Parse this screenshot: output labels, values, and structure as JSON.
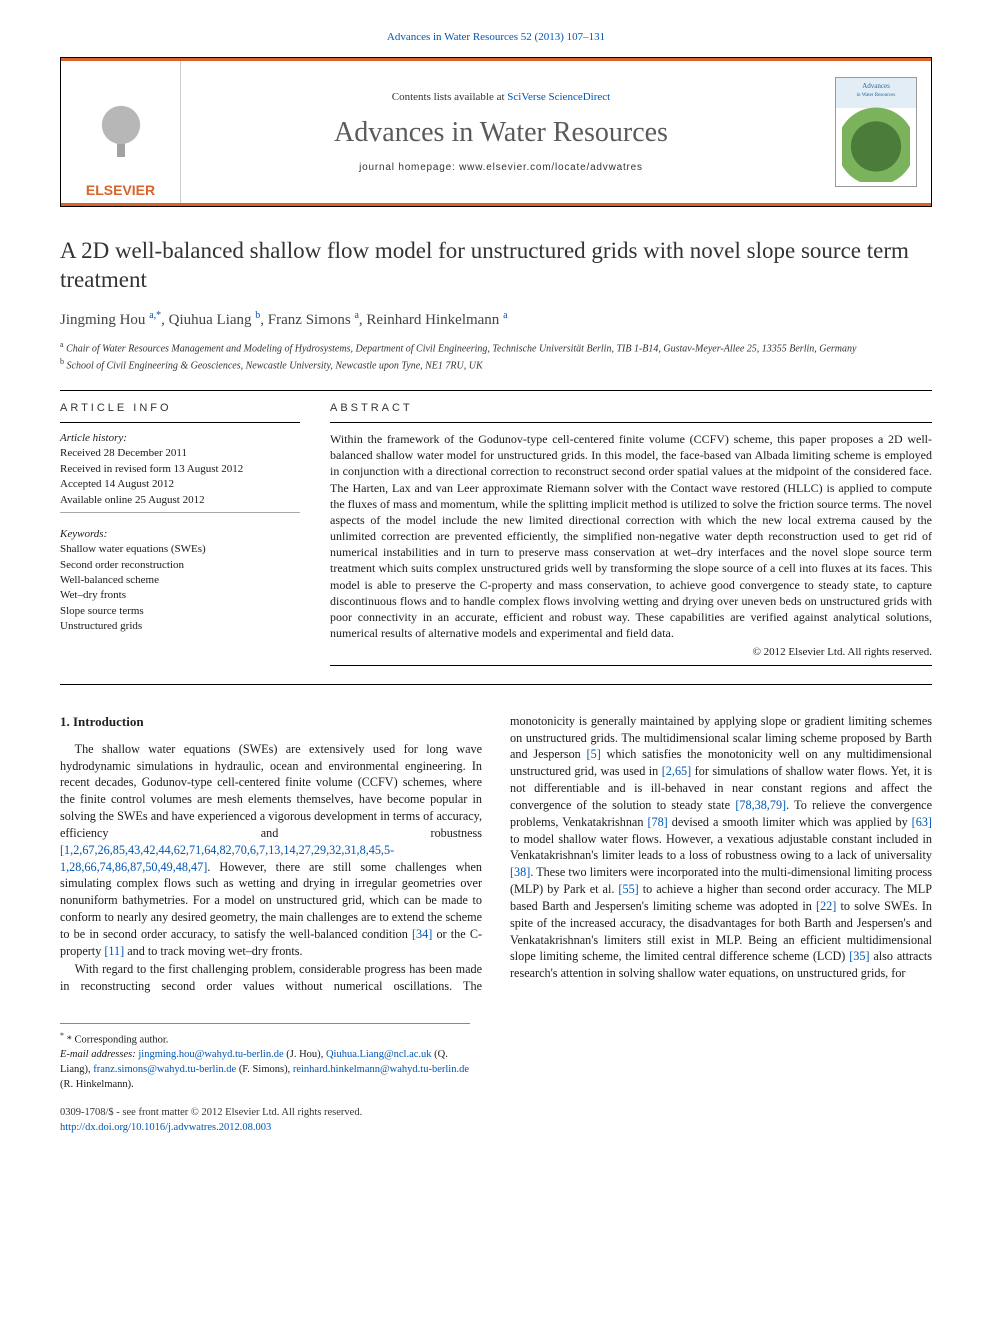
{
  "top_link": {
    "prefix": "",
    "journal_full": "Advances in Water Resources 52 (2013) 107–131"
  },
  "masthead": {
    "contents_line_pre": "Contents lists available at ",
    "contents_line_link": "SciVerse ScienceDirect",
    "journal_title": "Advances in Water Resources",
    "homepage_pre": "journal homepage: ",
    "homepage_url": "www.elsevier.com/locate/advwatres",
    "publisher": "ELSEVIER",
    "cover_t1": "Advances",
    "cover_t2": "in Water Resources"
  },
  "paper": {
    "title": "A 2D well-balanced shallow flow model for unstructured grids with novel slope source term treatment",
    "authors_html": [
      {
        "name": "Jingming Hou",
        "sup": "a,*"
      },
      {
        "name": "Qiuhua Liang",
        "sup": "b"
      },
      {
        "name": "Franz Simons",
        "sup": "a"
      },
      {
        "name": "Reinhard Hinkelmann",
        "sup": "a"
      }
    ],
    "affiliations": [
      {
        "sup": "a",
        "text": "Chair of Water Resources Management and Modeling of Hydrosystems, Department of Civil Engineering, Technische Universität Berlin, TIB 1-B14, Gustav-Meyer-Allee 25, 13355 Berlin, Germany"
      },
      {
        "sup": "b",
        "text": "School of Civil Engineering & Geosciences, Newcastle University, Newcastle upon Tyne, NE1 7RU, UK"
      }
    ]
  },
  "article_info": {
    "head": "ARTICLE INFO",
    "history_label": "Article history:",
    "history": [
      "Received 28 December 2011",
      "Received in revised form 13 August 2012",
      "Accepted 14 August 2012",
      "Available online 25 August 2012"
    ],
    "keywords_label": "Keywords:",
    "keywords": [
      "Shallow water equations (SWEs)",
      "Second order reconstruction",
      "Well-balanced scheme",
      "Wet–dry fronts",
      "Slope source terms",
      "Unstructured grids"
    ]
  },
  "abstract": {
    "head": "ABSTRACT",
    "text": "Within the framework of the Godunov-type cell-centered finite volume (CCFV) scheme, this paper proposes a 2D well-balanced shallow water model for unstructured grids. In this model, the face-based van Albada limiting scheme is employed in conjunction with a directional correction to reconstruct second order spatial values at the midpoint of the considered face. The Harten, Lax and van Leer approximate Riemann solver with the Contact wave restored (HLLC) is applied to compute the fluxes of mass and momentum, while the splitting implicit method is utilized to solve the friction source terms. The novel aspects of the model include the new limited directional correction with which the new local extrema caused by the unlimited correction are prevented efficiently, the simplified non-negative water depth reconstruction used to get rid of numerical instabilities and in turn to preserve mass conservation at wet–dry interfaces and the novel slope source term treatment which suits complex unstructured grids well by transforming the slope source of a cell into fluxes at its faces. This model is able to preserve the C-property and mass conservation, to achieve good convergence to steady state, to capture discontinuous flows and to handle complex flows involving wetting and drying over uneven beds on unstructured grids with poor connectivity in an accurate, efficient and robust way. These capabilities are verified against analytical solutions, numerical results of alternative models and experimental and field data.",
    "copyright": "© 2012 Elsevier Ltd. All rights reserved."
  },
  "body": {
    "heading": "1. Introduction",
    "p1_a": "The shallow water equations (SWEs) are extensively used for long wave hydrodynamic simulations in hydraulic, ocean and environmental engineering. In recent decades, Godunov-type cell-centered finite volume (CCFV) schemes, where the finite control volumes are mesh elements themselves, have become popular in solving the SWEs and have experienced a vigorous development in terms of accuracy, efficiency and robustness ",
    "p1_ref1": "[1,2,67,26,85,43,42,44,62,71,64,82,70,6,7,13,14,27,29,32,31,8,45,5-1,28,66,74,86,87,50,49,48,47]",
    "p1_b": ". However, there are still some challenges when simulating complex flows such as wetting and drying in irregular geometries over nonuniform bathymetries. For a model on unstructured grid, which can be made to conform to nearly any desired geometry, the main challenges are to extend the scheme to be in second order accuracy, to satisfy the well-balanced condition ",
    "p1_ref2": "[34]",
    "p1_c": " or the C-property ",
    "p1_ref3": "[11]",
    "p1_d": " and to track moving wet–dry fronts.",
    "p2_a": "With regard to the first challenging problem, considerable progress has been made in reconstructing second order values without numerical oscillations. The monotonicity is generally maintained by applying slope or gradient limiting schemes on unstructured grids. The multidimensional scalar liming scheme proposed by Barth and Jesperson ",
    "p2_ref1": "[5]",
    "p2_b": " which satisfies the monotonicity well on any multidimensional unstructured grid, was used in ",
    "p2_ref2": "[2,65]",
    "p2_c": " for simulations of shallow water flows. Yet, it is not differentiable and is ill-behaved in near constant regions and affect the convergence of the solution to steady state ",
    "p2_ref3": "[78,38,79]",
    "p2_d": ". To relieve the convergence problems, Venkatakrishnan ",
    "p2_ref4": "[78]",
    "p2_e": " devised a smooth limiter which was applied by ",
    "p2_ref5": "[63]",
    "p2_f": " to model shallow water flows. However, a vexatious adjustable constant included in Venkatakrishnan's limiter leads to a loss of robustness owing to a lack of universality ",
    "p2_ref6": "[38]",
    "p2_g": ". These two limiters were incorporated into the multi-dimensional limiting process (MLP) by Park et al. ",
    "p2_ref7": "[55]",
    "p2_h": " to achieve a higher than second order accuracy. The MLP based Barth and Jespersen's limiting scheme was adopted in ",
    "p2_ref8": "[22]",
    "p2_i": " to solve SWEs. In spite of the increased accuracy, the disadvantages for both Barth and Jespersen's and Venkatakrishnan's limiters still exist in MLP. Being an efficient multidimensional slope limiting scheme, the limited central difference scheme (LCD) ",
    "p2_ref9": "[35]",
    "p2_j": " also attracts research's attention in solving shallow water equations, on unstructured grids, for"
  },
  "footnotes": {
    "corr_label": "* Corresponding author.",
    "email_label": "E-mail addresses:",
    "emails": [
      {
        "addr": "jingming.hou@wahyd.tu-berlin.de",
        "who": "(J. Hou)"
      },
      {
        "addr": "Qiuhua.Liang@ncl.ac.uk",
        "who": "(Q. Liang)"
      },
      {
        "addr": "franz.simons@wahyd.tu-berlin.de",
        "who": "(F. Simons)"
      },
      {
        "addr": "reinhard.hinkelmann@wahyd.tu-berlin.de",
        "who": "(R. Hinkelmann)"
      }
    ]
  },
  "bottom": {
    "line1": "0309-1708/$ - see front matter © 2012 Elsevier Ltd. All rights reserved.",
    "doi": "http://dx.doi.org/10.1016/j.advwatres.2012.08.003"
  },
  "style": {
    "accent": "#d9632a",
    "link": "#0056b3",
    "text": "#1a1a1a",
    "paper_width": 992,
    "paper_height": 1323,
    "body_font_size": 12.2,
    "title_font_size": 23,
    "journal_title_font_size": 28
  }
}
